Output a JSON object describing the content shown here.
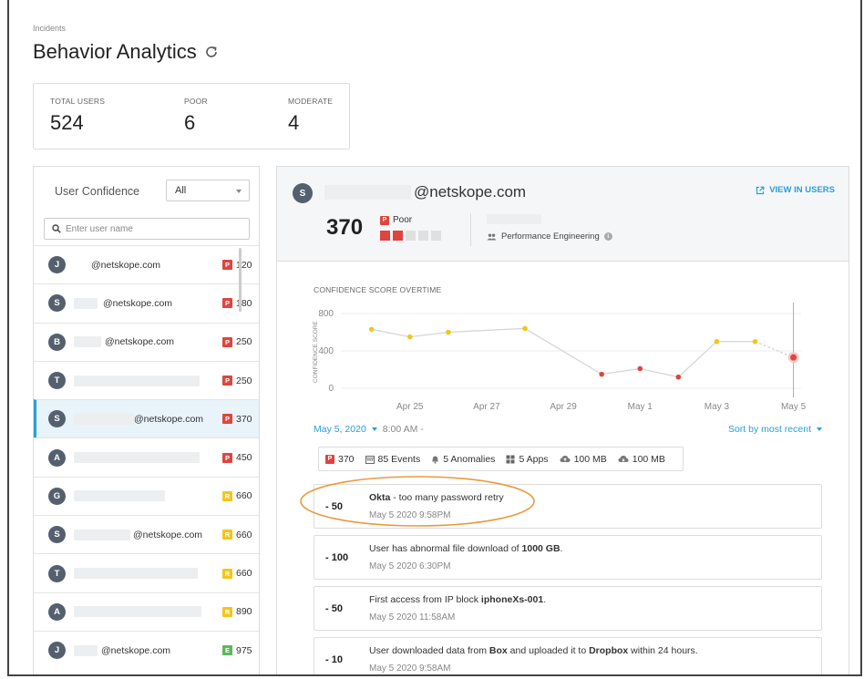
{
  "breadcrumb": "Incidents",
  "page_title": "Behavior Analytics",
  "stats": [
    {
      "label": "TOTAL USERS",
      "value": "524"
    },
    {
      "label": "POOR",
      "value": "6"
    },
    {
      "label": "MODERATE",
      "value": "4"
    }
  ],
  "left_panel": {
    "title": "User Confidence",
    "filter_value": "All",
    "search_placeholder": "Enter user name",
    "users": [
      {
        "initial": "J",
        "email": "@netskope.com",
        "badge": "P",
        "score": "120"
      },
      {
        "initial": "S",
        "email": "@netskope.com",
        "badge": "P",
        "score": "180"
      },
      {
        "initial": "B",
        "email": "@netskope.com",
        "badge": "P",
        "score": "250"
      },
      {
        "initial": "T",
        "email": "",
        "badge": "P",
        "score": "250"
      },
      {
        "initial": "S",
        "email": "@netskope.com",
        "badge": "P",
        "score": "370"
      },
      {
        "initial": "A",
        "email": "",
        "badge": "P",
        "score": "450"
      },
      {
        "initial": "G",
        "email": "",
        "badge": "R",
        "score": "660"
      },
      {
        "initial": "S",
        "email": "@netskope.com",
        "badge": "R",
        "score": "660"
      },
      {
        "initial": "T",
        "email": "",
        "badge": "R",
        "score": "660"
      },
      {
        "initial": "A",
        "email": "",
        "badge": "R",
        "score": "890"
      },
      {
        "initial": "J",
        "email": "@netskope.com",
        "badge": "E",
        "score": "975"
      }
    ]
  },
  "detail": {
    "initial": "S",
    "email": "@netskope.com",
    "view_users": "VIEW IN USERS",
    "score": "370",
    "badge": "P",
    "rating": "Poor",
    "department": "Performance Engineering",
    "chart_title": "CONFIDENCE SCORE OVERTIME",
    "date": "May 5, 2020",
    "time": "8:00 AM -",
    "sort": "Sort by most recent",
    "summary": {
      "score": "370",
      "events": "85 Events",
      "anomalies": "5 Anomalies",
      "apps": "5 Apps",
      "upload": "100 MB",
      "download": "100 MB"
    },
    "events": [
      {
        "delta": "- 50",
        "bold_pre": "Okta",
        "text": " - too many password retry",
        "bold_post": "",
        "text_post": "",
        "time": "May 5 2020 9:58PM"
      },
      {
        "delta": "- 100",
        "bold_pre": "",
        "text": "User has abnormal file download of ",
        "bold_post": "1000 GB",
        "text_post": ".",
        "time": "May 5 2020 6:30PM"
      },
      {
        "delta": "- 50",
        "bold_pre": "",
        "text": "First access from IP block ",
        "bold_post": "iphoneXs-001",
        "text_post": ".",
        "time": "May 5 2020 11:58AM"
      },
      {
        "delta": "- 10",
        "bold_pre": "",
        "text": "User downloaded data from ",
        "bold_post": "Box",
        "text_post": " and uploaded it to ",
        "bold_post2": "Dropbox",
        "text_post2": " within 24 hours.",
        "time": "May 5 2020 9:58AM"
      }
    ]
  },
  "chart_data": {
    "type": "line",
    "ylabel": "CONFIDENCE SCORE",
    "ylim": [
      0,
      800
    ],
    "yticks": [
      0,
      400,
      800
    ],
    "xticks": [
      "Apr 25",
      "Apr 27",
      "Apr 29",
      "May 1",
      "May 3",
      "May 5"
    ],
    "x": [
      23.8,
      24.8,
      25.8,
      27.8,
      29.8,
      30.8,
      31.8,
      32.8,
      33.8,
      34.8
    ],
    "values": [
      630,
      550,
      600,
      640,
      150,
      210,
      120,
      500,
      500,
      330
    ],
    "point_colors": [
      "#f5c518",
      "#f5c518",
      "#f5c518",
      "#f5c518",
      "#e0443e",
      "#e0443e",
      "#e0443e",
      "#f5c518",
      "#f5c518",
      "#e0443e"
    ],
    "grid": true
  },
  "colors": {
    "accent": "#2a9fd6",
    "poor": "#e0443e",
    "moderate": "#f5c518",
    "good": "#5cb85c"
  }
}
